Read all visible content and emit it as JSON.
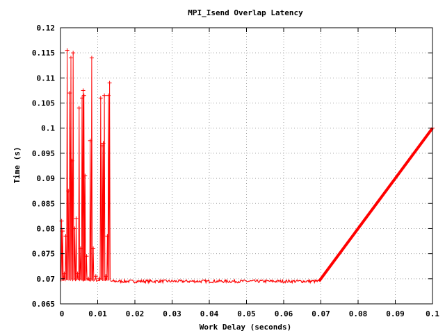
{
  "chart_data": {
    "type": "line",
    "title": "MPI_Isend Overlap Latency",
    "xlabel": "Work Delay (seconds)",
    "ylabel": "Time (s)",
    "xlim": [
      0,
      0.1
    ],
    "ylim": [
      0.065,
      0.12
    ],
    "grid": true,
    "line_color": "#ff0000",
    "marker": "+",
    "x_ticks": [
      "0",
      "0.01",
      "0.02",
      "0.03",
      "0.04",
      "0.05",
      "0.06",
      "0.07",
      "0.08",
      "0.09",
      "0.1"
    ],
    "y_ticks": [
      "0.065",
      "0.07",
      "0.075",
      "0.08",
      "0.085",
      "0.09",
      "0.095",
      "0.1",
      "0.105",
      "0.11",
      "0.115",
      "0.12"
    ],
    "spikes": [
      {
        "x": 0.0003,
        "y": 0.0815
      },
      {
        "x": 0.0006,
        "y": 0.0795
      },
      {
        "x": 0.001,
        "y": 0.071
      },
      {
        "x": 0.0014,
        "y": 0.0785
      },
      {
        "x": 0.0018,
        "y": 0.1155
      },
      {
        "x": 0.0021,
        "y": 0.0875
      },
      {
        "x": 0.0025,
        "y": 0.107
      },
      {
        "x": 0.0028,
        "y": 0.114
      },
      {
        "x": 0.0031,
        "y": 0.0935
      },
      {
        "x": 0.0034,
        "y": 0.115
      },
      {
        "x": 0.0038,
        "y": 0.08
      },
      {
        "x": 0.0042,
        "y": 0.082
      },
      {
        "x": 0.0046,
        "y": 0.071
      },
      {
        "x": 0.005,
        "y": 0.104
      },
      {
        "x": 0.0054,
        "y": 0.076
      },
      {
        "x": 0.0058,
        "y": 0.106
      },
      {
        "x": 0.0061,
        "y": 0.1075
      },
      {
        "x": 0.0063,
        "y": 0.1065
      },
      {
        "x": 0.0066,
        "y": 0.0905
      },
      {
        "x": 0.007,
        "y": 0.0745
      },
      {
        "x": 0.0075,
        "y": 0.07
      },
      {
        "x": 0.008,
        "y": 0.0975
      },
      {
        "x": 0.0084,
        "y": 0.114
      },
      {
        "x": 0.0088,
        "y": 0.076
      },
      {
        "x": 0.0095,
        "y": 0.0705
      },
      {
        "x": 0.0104,
        "y": 0.07
      },
      {
        "x": 0.0108,
        "y": 0.106
      },
      {
        "x": 0.0112,
        "y": 0.0965
      },
      {
        "x": 0.0115,
        "y": 0.097
      },
      {
        "x": 0.0118,
        "y": 0.1065
      },
      {
        "x": 0.0122,
        "y": 0.0705
      },
      {
        "x": 0.0126,
        "y": 0.0785
      },
      {
        "x": 0.0129,
        "y": 0.1065
      },
      {
        "x": 0.0132,
        "y": 0.109
      }
    ],
    "flat": {
      "x_start": 0.0135,
      "x_end": 0.0695,
      "y": 0.0695
    },
    "ramp": {
      "x_start": 0.0695,
      "y_start": 0.0695,
      "x_end": 0.1,
      "y_end": 0.1
    }
  }
}
